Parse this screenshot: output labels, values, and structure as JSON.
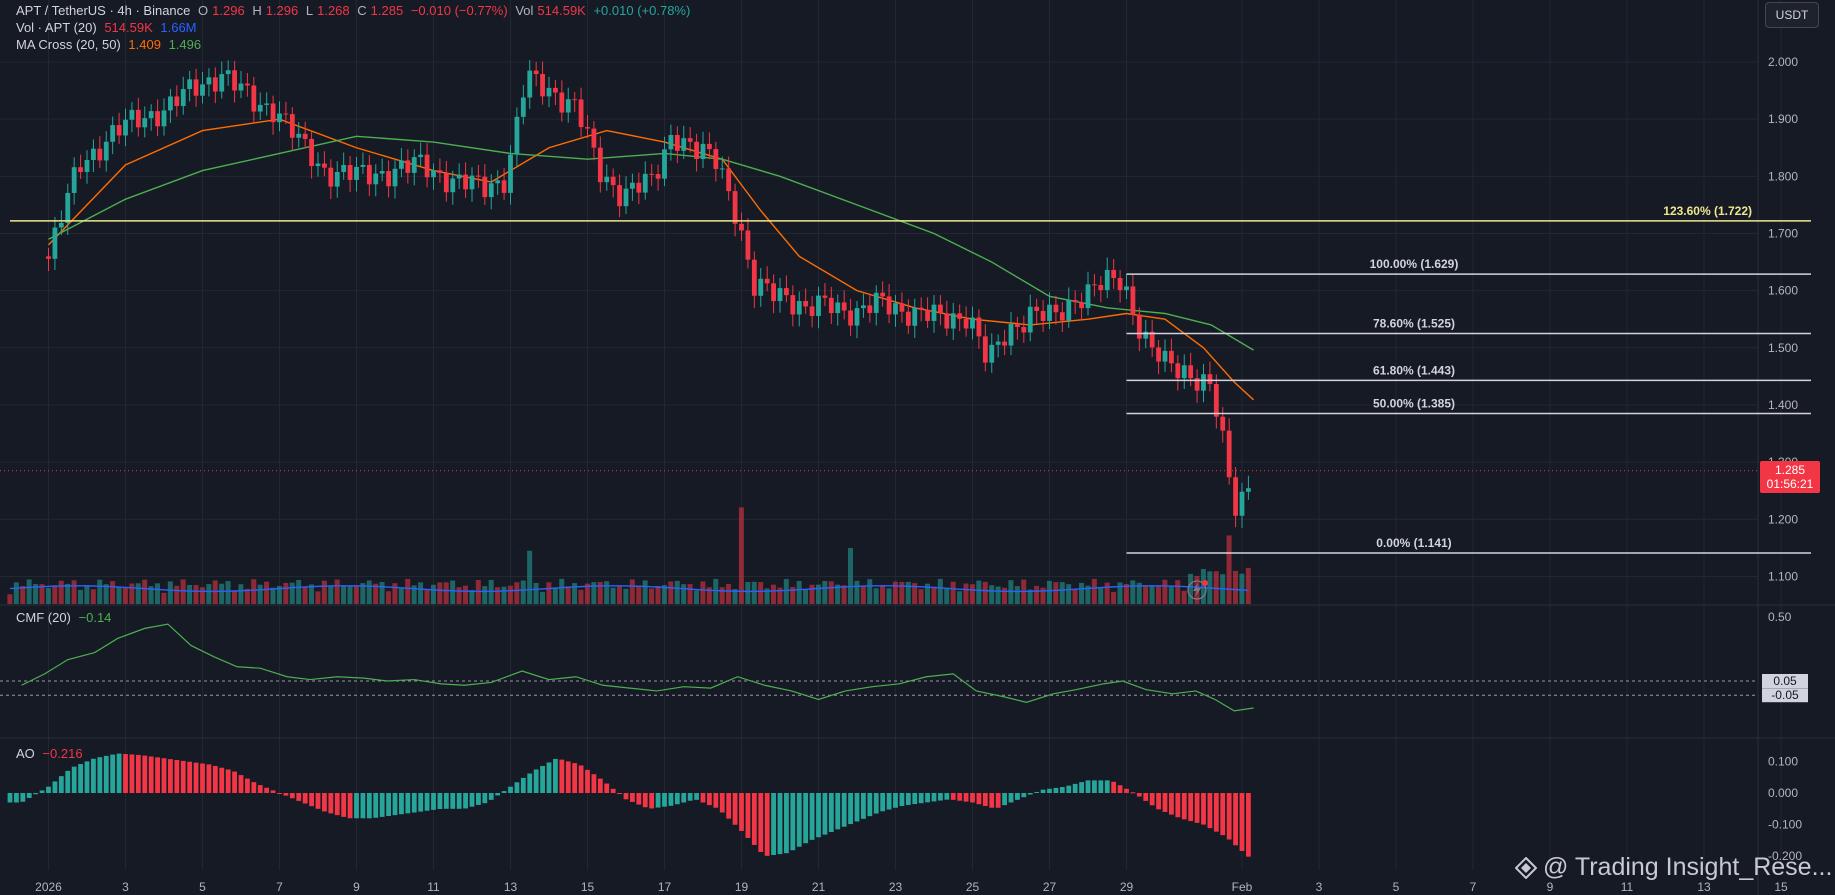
{
  "header": {
    "symbol": "APT / TetherUS · 4h · Binance",
    "o_label": "O",
    "o": "1.296",
    "h_label": "H",
    "h": "1.296",
    "l_label": "L",
    "l": "1.268",
    "c_label": "C",
    "c": "1.285",
    "change": "−0.010 (−0.77%)",
    "vol_label": "Vol",
    "vol": "514.59K",
    "vol_change": "+0.010 (+0.78%)"
  },
  "vol_legend": {
    "label": "Vol · APT (20)",
    "v1": "514.59K",
    "v2": "1.66M"
  },
  "ma_legend": {
    "label": "MA Cross (20, 50)",
    "v1": "1.409",
    "v2": "1.496"
  },
  "cmf_legend": {
    "label": "CMF (20)",
    "value": "−0.14"
  },
  "ao_legend": {
    "label": "AO",
    "value": "−0.216"
  },
  "currency": "USDT",
  "last_price": {
    "price": "1.285",
    "countdown": "01:56:21"
  },
  "watermark": "@ Trading Insight_Rese...",
  "colors": {
    "up": "#26a69a",
    "down": "#f23645",
    "ma20": "#ff6d00",
    "ma50": "#4caf50",
    "vol_ma": "#2962ff",
    "fib": "#d1d4dc",
    "fib_ext": "#f0e68c",
    "background": "#161a25"
  },
  "chart_data": [
    {
      "type": "candlestick",
      "title": "APT / TetherUS · 4h · Binance",
      "x_ticks": [
        "2026",
        "3",
        "5",
        "7",
        "9",
        "11",
        "13",
        "15",
        "17",
        "19",
        "21",
        "23",
        "25",
        "27",
        "29",
        "Feb",
        "3",
        "5",
        "7",
        "9",
        "11",
        "13",
        "15"
      ],
      "y_ticks": [
        "2.000",
        "1.900",
        "1.800",
        "1.700",
        "1.600",
        "1.500",
        "1.400",
        "1.300",
        "1.200",
        "1.100"
      ],
      "ylim": [
        1.08,
        2.1
      ],
      "price_path": [
        {
          "day": 1.0,
          "price": 1.66
        },
        {
          "day": 1.8,
          "price": 1.82
        },
        {
          "day": 2.6,
          "price": 1.87
        },
        {
          "day": 3.3,
          "price": 1.9
        },
        {
          "day": 4.1,
          "price": 1.92
        },
        {
          "day": 4.9,
          "price": 1.96
        },
        {
          "day": 5.5,
          "price": 1.98
        },
        {
          "day": 6.3,
          "price": 1.93
        },
        {
          "day": 6.9,
          "price": 1.92
        },
        {
          "day": 7.6,
          "price": 1.85
        },
        {
          "day": 8.2,
          "price": 1.81
        },
        {
          "day": 9.1,
          "price": 1.8
        },
        {
          "day": 9.9,
          "price": 1.81
        },
        {
          "day": 10.7,
          "price": 1.82
        },
        {
          "day": 11.6,
          "price": 1.79
        },
        {
          "day": 12.3,
          "price": 1.78
        },
        {
          "day": 12.9,
          "price": 1.8
        },
        {
          "day": 13.4,
          "price": 1.97
        },
        {
          "day": 14.1,
          "price": 1.95
        },
        {
          "day": 14.7,
          "price": 1.92
        },
        {
          "day": 15.3,
          "price": 1.81
        },
        {
          "day": 15.9,
          "price": 1.77
        },
        {
          "day": 16.7,
          "price": 1.79
        },
        {
          "day": 17.2,
          "price": 1.88
        },
        {
          "day": 17.8,
          "price": 1.84
        },
        {
          "day": 18.4,
          "price": 1.83
        },
        {
          "day": 18.9,
          "price": 1.73
        },
        {
          "day": 19.3,
          "price": 1.6
        },
        {
          "day": 20.1,
          "price": 1.6
        },
        {
          "day": 20.7,
          "price": 1.56
        },
        {
          "day": 21.3,
          "price": 1.58
        },
        {
          "day": 22.0,
          "price": 1.56
        },
        {
          "day": 22.7,
          "price": 1.58
        },
        {
          "day": 23.5,
          "price": 1.56
        },
        {
          "day": 24.2,
          "price": 1.55
        },
        {
          "day": 24.9,
          "price": 1.56
        },
        {
          "day": 25.4,
          "price": 1.47
        },
        {
          "day": 25.9,
          "price": 1.53
        },
        {
          "day": 26.5,
          "price": 1.56
        },
        {
          "day": 27.1,
          "price": 1.55
        },
        {
          "day": 27.7,
          "price": 1.59
        },
        {
          "day": 28.4,
          "price": 1.61
        },
        {
          "day": 28.9,
          "price": 1.62
        },
        {
          "day": 29.2,
          "price": 1.56
        },
        {
          "day": 29.6,
          "price": 1.5
        },
        {
          "day": 30.0,
          "price": 1.47
        },
        {
          "day": 30.6,
          "price": 1.46
        },
        {
          "day": 31.2,
          "price": 1.43
        },
        {
          "day": 31.5,
          "price": 1.33
        },
        {
          "day": 31.8,
          "price": 1.22
        },
        {
          "day": 32.0,
          "price": 1.24
        },
        {
          "day": 32.2,
          "price": 1.27
        },
        {
          "day": 32.3,
          "price": 1.285
        }
      ],
      "series": [
        {
          "name": "MA 20",
          "points": [
            [
              1,
              1.68
            ],
            [
              3,
              1.82
            ],
            [
              5,
              1.88
            ],
            [
              7,
              1.9
            ],
            [
              9,
              1.85
            ],
            [
              11,
              1.81
            ],
            [
              12.5,
              1.79
            ],
            [
              14,
              1.85
            ],
            [
              15.5,
              1.88
            ],
            [
              17,
              1.86
            ],
            [
              18.5,
              1.83
            ],
            [
              19.5,
              1.74
            ],
            [
              20.5,
              1.66
            ],
            [
              22,
              1.6
            ],
            [
              23.5,
              1.57
            ],
            [
              25,
              1.55
            ],
            [
              26.5,
              1.54
            ],
            [
              28,
              1.55
            ],
            [
              29,
              1.56
            ],
            [
              30,
              1.55
            ],
            [
              31,
              1.5
            ],
            [
              31.8,
              1.44
            ],
            [
              32.3,
              1.409
            ]
          ]
        },
        {
          "name": "MA 50",
          "points": [
            [
              1,
              1.69
            ],
            [
              3,
              1.76
            ],
            [
              5,
              1.81
            ],
            [
              7,
              1.84
            ],
            [
              9,
              1.87
            ],
            [
              11,
              1.86
            ],
            [
              13,
              1.84
            ],
            [
              15,
              1.83
            ],
            [
              17,
              1.84
            ],
            [
              18.5,
              1.83
            ],
            [
              20,
              1.8
            ],
            [
              22,
              1.75
            ],
            [
              24,
              1.7
            ],
            [
              25.5,
              1.65
            ],
            [
              27,
              1.59
            ],
            [
              28.5,
              1.57
            ],
            [
              30,
              1.56
            ],
            [
              31.2,
              1.54
            ],
            [
              32.3,
              1.496
            ]
          ]
        }
      ],
      "fibonacci": [
        {
          "label": "123.60% (1.722)",
          "value": 1.722,
          "from_day": 0,
          "to_day": 46
        },
        {
          "label": "100.00% (1.629)",
          "value": 1.629,
          "from_day": 29,
          "to_day": 46
        },
        {
          "label": "78.60% (1.525)",
          "value": 1.525,
          "from_day": 29,
          "to_day": 46
        },
        {
          "label": "61.80% (1.443)",
          "value": 1.443,
          "from_day": 29,
          "to_day": 46
        },
        {
          "label": "50.00% (1.385)",
          "value": 1.385,
          "from_day": 29,
          "to_day": 46
        },
        {
          "label": "0.00% (1.141)",
          "value": 1.141,
          "from_day": 29,
          "to_day": 46
        }
      ],
      "last_price": 1.285
    },
    {
      "type": "bar",
      "title": "Vol · APT (20)",
      "spikes": [
        {
          "day": 13.5,
          "volume": 1.9,
          "color": "up"
        },
        {
          "day": 19.0,
          "volume": 3.45,
          "color": "down"
        },
        {
          "day": 21.8,
          "volume": 2.0,
          "color": "up"
        },
        {
          "day": 31.7,
          "volume": 2.05,
          "color": "down"
        }
      ],
      "volume_ma_last": 1.66,
      "last_volume": 0.51459
    },
    {
      "type": "line",
      "title": "CMF (20)",
      "y_ticks": [
        "0.50",
        "0.05",
        "-0.05"
      ],
      "ylim": [
        -0.3,
        0.5
      ],
      "thresholds": [
        0.05,
        -0.05
      ],
      "points": [
        [
          0.3,
          0.02
        ],
        [
          0.9,
          0.1
        ],
        [
          1.5,
          0.2
        ],
        [
          2.2,
          0.25
        ],
        [
          2.8,
          0.35
        ],
        [
          3.5,
          0.42
        ],
        [
          4.1,
          0.45
        ],
        [
          4.7,
          0.3
        ],
        [
          5.3,
          0.22
        ],
        [
          5.9,
          0.15
        ],
        [
          6.5,
          0.14
        ],
        [
          7.2,
          0.08
        ],
        [
          7.8,
          0.06
        ],
        [
          8.5,
          0.08
        ],
        [
          9.2,
          0.07
        ],
        [
          9.8,
          0.05
        ],
        [
          10.5,
          0.06
        ],
        [
          11.2,
          0.03
        ],
        [
          11.8,
          0.02
        ],
        [
          12.5,
          0.04
        ],
        [
          13.3,
          0.12
        ],
        [
          14.0,
          0.06
        ],
        [
          14.7,
          0.08
        ],
        [
          15.4,
          0.02
        ],
        [
          16.1,
          0.0
        ],
        [
          16.8,
          -0.02
        ],
        [
          17.5,
          0.01
        ],
        [
          18.2,
          0.0
        ],
        [
          18.9,
          0.08
        ],
        [
          19.6,
          0.02
        ],
        [
          20.3,
          -0.02
        ],
        [
          21.0,
          -0.08
        ],
        [
          21.7,
          -0.02
        ],
        [
          22.4,
          0.01
        ],
        [
          23.1,
          0.03
        ],
        [
          23.8,
          0.08
        ],
        [
          24.5,
          0.1
        ],
        [
          25.1,
          -0.02
        ],
        [
          25.8,
          -0.06
        ],
        [
          26.4,
          -0.1
        ],
        [
          27.1,
          -0.04
        ],
        [
          27.7,
          -0.01
        ],
        [
          28.4,
          0.03
        ],
        [
          28.9,
          0.05
        ],
        [
          29.5,
          -0.01
        ],
        [
          30.2,
          -0.04
        ],
        [
          30.8,
          -0.02
        ],
        [
          31.3,
          -0.08
        ],
        [
          31.8,
          -0.16
        ],
        [
          32.3,
          -0.14
        ]
      ],
      "last_value": -0.14
    },
    {
      "type": "bar",
      "title": "AO",
      "y_ticks": [
        "0.100",
        "0.000",
        "-0.100",
        "-0.200"
      ],
      "ylim": [
        -0.22,
        0.13
      ],
      "points": [
        [
          0.3,
          -0.03
        ],
        [
          1.0,
          0.02
        ],
        [
          1.6,
          0.08
        ],
        [
          2.2,
          0.11
        ],
        [
          2.8,
          0.125
        ],
        [
          3.4,
          0.12
        ],
        [
          4.0,
          0.11
        ],
        [
          4.6,
          0.1
        ],
        [
          5.2,
          0.09
        ],
        [
          5.8,
          0.07
        ],
        [
          6.4,
          0.03
        ],
        [
          7.0,
          0.0
        ],
        [
          7.6,
          -0.03
        ],
        [
          8.2,
          -0.06
        ],
        [
          8.8,
          -0.08
        ],
        [
          9.4,
          -0.08
        ],
        [
          10.0,
          -0.07
        ],
        [
          10.6,
          -0.06
        ],
        [
          11.2,
          -0.05
        ],
        [
          11.8,
          -0.05
        ],
        [
          12.4,
          -0.03
        ],
        [
          13.0,
          0.02
        ],
        [
          13.6,
          0.07
        ],
        [
          14.2,
          0.11
        ],
        [
          14.8,
          0.09
        ],
        [
          15.4,
          0.04
        ],
        [
          16.0,
          -0.02
        ],
        [
          16.6,
          -0.05
        ],
        [
          17.2,
          -0.04
        ],
        [
          17.8,
          -0.02
        ],
        [
          18.4,
          -0.05
        ],
        [
          19.0,
          -0.12
        ],
        [
          19.6,
          -0.2
        ],
        [
          20.2,
          -0.19
        ],
        [
          20.8,
          -0.15
        ],
        [
          21.4,
          -0.12
        ],
        [
          22.0,
          -0.09
        ],
        [
          22.6,
          -0.06
        ],
        [
          23.2,
          -0.04
        ],
        [
          23.8,
          -0.03
        ],
        [
          24.4,
          -0.02
        ],
        [
          25.0,
          -0.03
        ],
        [
          25.6,
          -0.05
        ],
        [
          26.2,
          -0.02
        ],
        [
          26.8,
          0.01
        ],
        [
          27.4,
          0.02
        ],
        [
          28.0,
          0.04
        ],
        [
          28.6,
          0.04
        ],
        [
          29.2,
          0.0
        ],
        [
          29.8,
          -0.05
        ],
        [
          30.4,
          -0.08
        ],
        [
          31.0,
          -0.1
        ],
        [
          31.6,
          -0.14
        ],
        [
          32.3,
          -0.216
        ]
      ],
      "last_value": -0.216
    }
  ]
}
